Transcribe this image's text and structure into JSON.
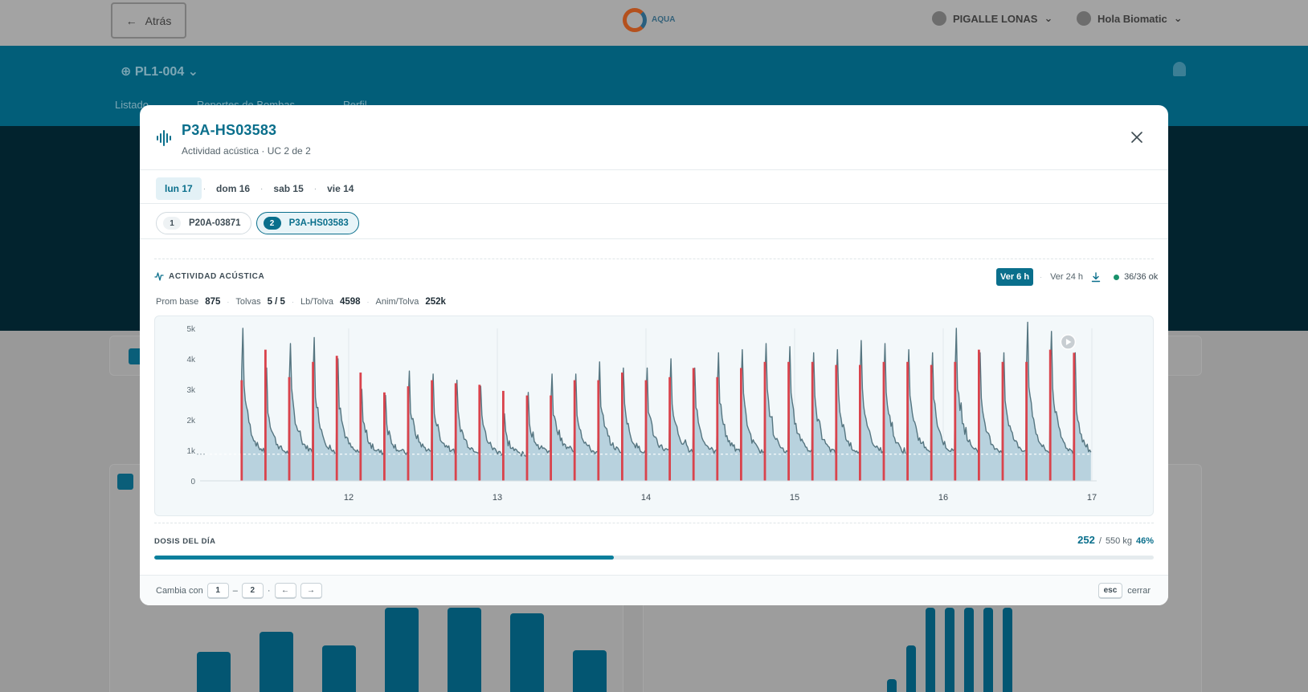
{
  "background": {
    "back_label": "Atrás",
    "brand": "AQUA",
    "farm_name": "PIGALLE LONAS",
    "user_greeting": "Hola Biomatic",
    "pool_title": "PL1-004",
    "nav": [
      "Listado",
      "Reportes de Bombas",
      "Perfil"
    ]
  },
  "modal": {
    "title": "P3A-HS03583",
    "subtitle": "Actividad acústica · UC 2 de 2",
    "close_icon": "close-icon",
    "days": [
      {
        "label": "lun 17",
        "active": true
      },
      {
        "label": "dom 16",
        "active": false
      },
      {
        "label": "sab 15",
        "active": false
      },
      {
        "label": "vie 14",
        "active": false
      }
    ],
    "units": [
      {
        "num": "1",
        "label": "P20A-03871",
        "active": false
      },
      {
        "num": "2",
        "label": "P3A-HS03583",
        "active": true
      }
    ],
    "section_title": "ACTIVIDAD ACÚSTICA",
    "controls": {
      "view_6h": "Ver 6 h",
      "view_24h": "Ver 24 h",
      "download_icon": "download-icon",
      "status": "36/36 ok",
      "status_color": "#19916b"
    },
    "stats": {
      "prom_base_label": "Prom base",
      "prom_base_value": "875",
      "tolvas_label": "Tolvas",
      "tolvas_value": "5 / 5",
      "lb_tolva_label": "Lb/Tolva",
      "lb_tolva_value": "4598",
      "anim_tolva_label": "Anim/Tolva",
      "anim_tolva_value": "252k"
    },
    "dose": {
      "label": "DOSIS DEL DÍA",
      "value": "252",
      "separator": "/",
      "total": "550 kg",
      "percent": "46%",
      "fraction": 0.46
    },
    "footer": {
      "cambia_label": "Cambia con",
      "key1": "1",
      "dash": "–",
      "key2": "2",
      "dot": "·",
      "key_left": "←",
      "key_right": "→",
      "esc_key": "esc",
      "close_label": "cerrar"
    }
  },
  "chart_data": {
    "type": "area",
    "xlabel": "",
    "ylabel": "",
    "x_ticks": [
      "12",
      "13",
      "14",
      "15",
      "16",
      "17"
    ],
    "y_ticks": [
      "0",
      "1k",
      "2k",
      "3k",
      "4k",
      "5k"
    ],
    "ylim": [
      0,
      5000
    ],
    "baseline": 875,
    "area_color": "#b8d2de",
    "line_color": "#557580",
    "marker_color": "#d9434c",
    "baseline_color": "#ffffff",
    "grid": true,
    "play_icon": "play-icon",
    "spikes": [
      {
        "time": 11.28,
        "marker": 3300,
        "peak": 5000
      },
      {
        "time": 11.44,
        "marker": 4300,
        "peak": 3700
      },
      {
        "time": 11.6,
        "marker": 3400,
        "peak": 4500
      },
      {
        "time": 11.76,
        "marker": 3900,
        "peak": 4700
      },
      {
        "time": 11.92,
        "marker": 4100,
        "peak": 4000
      },
      {
        "time": 12.08,
        "marker": 3550,
        "peak": 3000
      },
      {
        "time": 12.24,
        "marker": 2900,
        "peak": 2800
      },
      {
        "time": 12.4,
        "marker": 3100,
        "peak": 3600
      },
      {
        "time": 12.56,
        "marker": 3300,
        "peak": 3500
      },
      {
        "time": 12.72,
        "marker": 3200,
        "peak": 3300
      },
      {
        "time": 12.88,
        "marker": 3150,
        "peak": 3100
      },
      {
        "time": 13.04,
        "marker": 2950,
        "peak": 2200
      },
      {
        "time": 13.2,
        "marker": 2800,
        "peak": 2900
      },
      {
        "time": 13.36,
        "marker": 2800,
        "peak": 3500
      },
      {
        "time": 13.52,
        "marker": 3300,
        "peak": 3500
      },
      {
        "time": 13.68,
        "marker": 3300,
        "peak": 3900
      },
      {
        "time": 13.84,
        "marker": 3550,
        "peak": 3700
      },
      {
        "time": 14.0,
        "marker": 3300,
        "peak": 3700
      },
      {
        "time": 14.16,
        "marker": 3400,
        "peak": 4000
      },
      {
        "time": 14.32,
        "marker": 3700,
        "peak": 3700
      },
      {
        "time": 14.48,
        "marker": 3400,
        "peak": 4200
      },
      {
        "time": 14.64,
        "marker": 3700,
        "peak": 4300
      },
      {
        "time": 14.8,
        "marker": 3900,
        "peak": 4500
      },
      {
        "time": 14.96,
        "marker": 3900,
        "peak": 4400
      },
      {
        "time": 15.12,
        "marker": 3900,
        "peak": 4200
      },
      {
        "time": 15.28,
        "marker": 3800,
        "peak": 4300
      },
      {
        "time": 15.44,
        "marker": 3800,
        "peak": 4600
      },
      {
        "time": 15.6,
        "marker": 3900,
        "peak": 4500
      },
      {
        "time": 15.76,
        "marker": 3900,
        "peak": 4300
      },
      {
        "time": 15.92,
        "marker": 3800,
        "peak": 4200
      },
      {
        "time": 16.08,
        "marker": 3900,
        "peak": 5000
      },
      {
        "time": 16.24,
        "marker": 4300,
        "peak": 4200
      },
      {
        "time": 16.4,
        "marker": 3900,
        "peak": 4200
      },
      {
        "time": 16.56,
        "marker": 3900,
        "peak": 5200
      },
      {
        "time": 16.72,
        "marker": 4300,
        "peak": 4900
      },
      {
        "time": 16.88,
        "marker": 4200,
        "peak": 4200
      }
    ],
    "end_time": 17.0
  }
}
